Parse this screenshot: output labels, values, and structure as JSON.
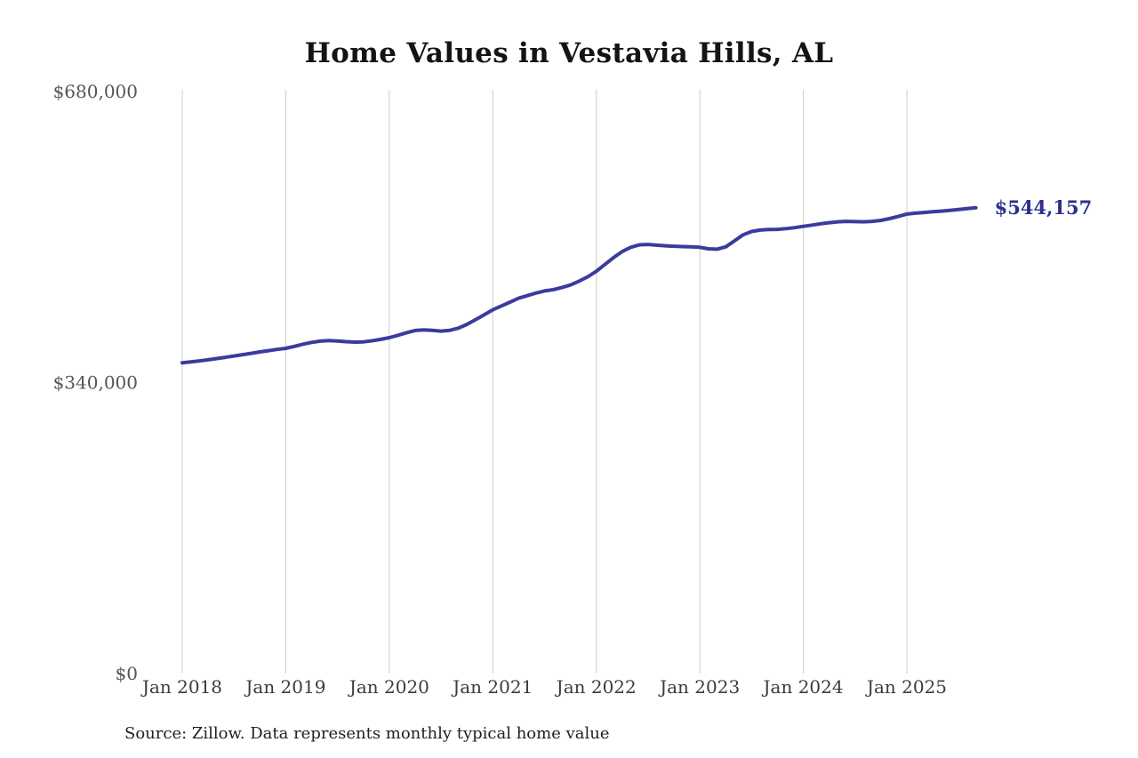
{
  "chart_data": {
    "type": "line",
    "title": "Home Values in Vestavia Hills, AL",
    "source_note": "Source: Zillow. Data represents monthly typical home value",
    "series_name": "Monthly typical home value",
    "x": [
      "2018-01",
      "2018-02",
      "2018-03",
      "2018-04",
      "2018-05",
      "2018-06",
      "2018-07",
      "2018-08",
      "2018-09",
      "2018-10",
      "2018-11",
      "2018-12",
      "2019-01",
      "2019-02",
      "2019-03",
      "2019-04",
      "2019-05",
      "2019-06",
      "2019-07",
      "2019-08",
      "2019-09",
      "2019-10",
      "2019-11",
      "2019-12",
      "2020-01",
      "2020-02",
      "2020-03",
      "2020-04",
      "2020-05",
      "2020-06",
      "2020-07",
      "2020-08",
      "2020-09",
      "2020-10",
      "2020-11",
      "2020-12",
      "2021-01",
      "2021-02",
      "2021-03",
      "2021-04",
      "2021-05",
      "2021-06",
      "2021-07",
      "2021-08",
      "2021-09",
      "2021-10",
      "2021-11",
      "2021-12",
      "2022-01",
      "2022-02",
      "2022-03",
      "2022-04",
      "2022-05",
      "2022-06",
      "2022-07",
      "2022-08",
      "2022-09",
      "2022-10",
      "2022-11",
      "2022-12",
      "2023-01",
      "2023-02",
      "2023-03",
      "2023-04",
      "2023-05",
      "2023-06",
      "2023-07",
      "2023-08",
      "2023-09",
      "2023-10",
      "2023-11",
      "2023-12",
      "2024-01",
      "2024-02",
      "2024-03",
      "2024-04",
      "2024-05",
      "2024-06",
      "2024-07",
      "2024-08",
      "2024-09",
      "2024-10",
      "2024-11",
      "2024-12",
      "2025-01",
      "2025-02",
      "2025-03",
      "2025-04",
      "2025-05",
      "2025-06",
      "2025-07",
      "2025-08",
      "2025-09"
    ],
    "values": [
      363000,
      364100,
      365300,
      366600,
      368000,
      369500,
      371000,
      372600,
      374200,
      375800,
      377300,
      378700,
      380000,
      382300,
      384800,
      386900,
      388400,
      389000,
      388600,
      387800,
      387200,
      387500,
      388800,
      390500,
      392400,
      395200,
      398200,
      400800,
      401600,
      400900,
      400100,
      400900,
      403500,
      408000,
      413500,
      419200,
      425000,
      429500,
      434000,
      438500,
      441500,
      444500,
      447000,
      448500,
      451000,
      454000,
      458500,
      463500,
      470000,
      478000,
      486000,
      493000,
      498000,
      500900,
      501300,
      500500,
      499800,
      499300,
      498800,
      498500,
      498000,
      496200,
      495800,
      498500,
      505500,
      512500,
      516500,
      518200,
      518800,
      519000,
      519800,
      521000,
      522500,
      524000,
      525500,
      526800,
      527800,
      528300,
      528000,
      527800,
      528300,
      529500,
      531500,
      534000,
      536800,
      537900,
      538700,
      539500,
      540300,
      541200,
      542200,
      543200,
      544157
    ],
    "end_label": "$544,157",
    "end_value": 544157,
    "x_tick_labels": [
      "Jan 2018",
      "Jan 2019",
      "Jan 2020",
      "Jan 2021",
      "Jan 2022",
      "Jan 2023",
      "Jan 2024",
      "Jan 2025"
    ],
    "x_tick_month_interval": 12,
    "y_tick_labels": [
      "$0",
      "$340,000",
      "$680,000"
    ],
    "y_tick_values": [
      0,
      340000,
      680000
    ],
    "ylim": [
      0,
      680000
    ],
    "grid": "vertical-only",
    "legend": "none",
    "colors": {
      "line": "#3b3b9e",
      "end_label": "#2e2e8f",
      "grid": "#cccccc",
      "title": "#141414",
      "x_tick": "#3c3c3c",
      "y_tick": "#555555",
      "source": "#1f1f1f"
    }
  }
}
